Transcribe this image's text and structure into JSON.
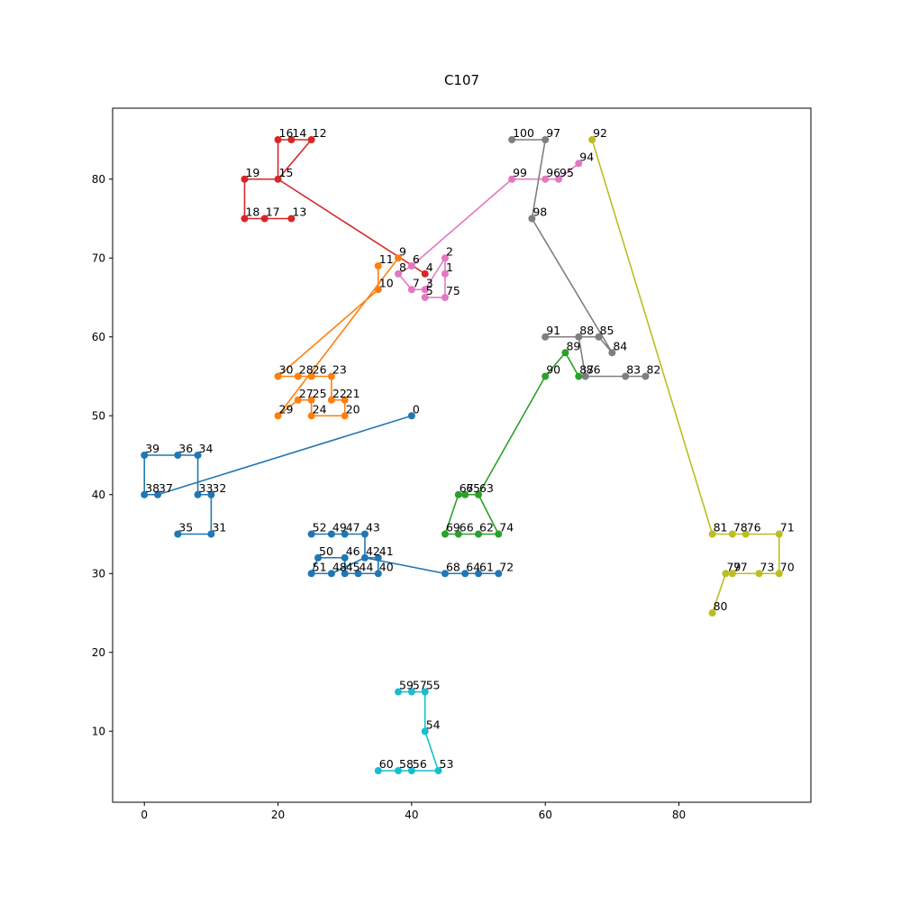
{
  "chart_data": {
    "type": "line",
    "title": "C107",
    "xlabel": "",
    "ylabel": "",
    "xlim": [
      -4.75,
      99.75
    ],
    "ylim": [
      1,
      89
    ],
    "xticks": [
      0,
      20,
      40,
      60,
      80
    ],
    "yticks": [
      10,
      20,
      30,
      40,
      50,
      60,
      70,
      80
    ],
    "grid": false,
    "points": {
      "0": [
        40,
        50
      ],
      "1": [
        45,
        68
      ],
      "2": [
        45,
        70
      ],
      "3": [
        42,
        66
      ],
      "4": [
        42,
        68
      ],
      "5": [
        42,
        65
      ],
      "6": [
        40,
        69
      ],
      "7": [
        40,
        66
      ],
      "8": [
        38,
        68
      ],
      "9": [
        38,
        70
      ],
      "10": [
        35,
        66
      ],
      "11": [
        35,
        69
      ],
      "12": [
        25,
        85
      ],
      "13": [
        22,
        75
      ],
      "14": [
        22,
        85
      ],
      "15": [
        20,
        80
      ],
      "16": [
        20,
        85
      ],
      "17": [
        18,
        75
      ],
      "18": [
        15,
        75
      ],
      "19": [
        15,
        80
      ],
      "20": [
        30,
        50
      ],
      "21": [
        30,
        52
      ],
      "22": [
        28,
        52
      ],
      "23": [
        28,
        55
      ],
      "24": [
        25,
        50
      ],
      "25": [
        25,
        52
      ],
      "26": [
        25,
        55
      ],
      "27": [
        23,
        52
      ],
      "28": [
        23,
        55
      ],
      "29": [
        20,
        50
      ],
      "30": [
        20,
        55
      ],
      "31": [
        10,
        35
      ],
      "32": [
        10,
        40
      ],
      "33": [
        8,
        40
      ],
      "34": [
        8,
        45
      ],
      "35": [
        5,
        35
      ],
      "36": [
        5,
        45
      ],
      "37": [
        2,
        40
      ],
      "38": [
        0,
        40
      ],
      "39": [
        0,
        45
      ],
      "40": [
        35,
        30
      ],
      "41": [
        35,
        32
      ],
      "42": [
        33,
        32
      ],
      "43": [
        33,
        35
      ],
      "44": [
        32,
        30
      ],
      "45": [
        30,
        30
      ],
      "46": [
        30,
        32
      ],
      "47": [
        30,
        35
      ],
      "48": [
        28,
        30
      ],
      "49": [
        28,
        35
      ],
      "50": [
        26,
        32
      ],
      "51": [
        25,
        30
      ],
      "52": [
        25,
        35
      ],
      "53": [
        44,
        5
      ],
      "54": [
        42,
        10
      ],
      "55": [
        42,
        15
      ],
      "56": [
        40,
        5
      ],
      "57": [
        40,
        15
      ],
      "58": [
        38,
        5
      ],
      "59": [
        38,
        15
      ],
      "60": [
        35,
        5
      ],
      "61": [
        50,
        30
      ],
      "62": [
        50,
        35
      ],
      "63": [
        50,
        40
      ],
      "64": [
        48,
        30
      ],
      "65": [
        48,
        40
      ],
      "66": [
        47,
        35
      ],
      "67": [
        47,
        40
      ],
      "68": [
        45,
        30
      ],
      "69": [
        45,
        35
      ],
      "70": [
        95,
        30
      ],
      "71": [
        95,
        35
      ],
      "72": [
        53,
        30
      ],
      "73": [
        92,
        30
      ],
      "74": [
        53,
        35
      ],
      "75": [
        45,
        65
      ],
      "76": [
        90,
        35
      ],
      "77": [
        88,
        30
      ],
      "78": [
        88,
        35
      ],
      "79": [
        87,
        30
      ],
      "80": [
        85,
        25
      ],
      "81": [
        85,
        35
      ],
      "82": [
        75,
        55
      ],
      "83": [
        72,
        55
      ],
      "84": [
        70,
        58
      ],
      "85": [
        68,
        60
      ],
      "86": [
        66,
        55
      ],
      "87": [
        65,
        55
      ],
      "88": [
        65,
        60
      ],
      "89": [
        63,
        58
      ],
      "90": [
        60,
        55
      ],
      "91": [
        60,
        60
      ],
      "92": [
        67,
        85
      ],
      "94": [
        65,
        82
      ],
      "95": [
        62,
        80
      ],
      "96": [
        60,
        80
      ],
      "97": [
        60,
        85
      ],
      "98": [
        58,
        75
      ],
      "99": [
        55,
        80
      ],
      "100": [
        55,
        85
      ]
    },
    "series": [
      {
        "color": "#1f77b4",
        "route": [
          0,
          37,
          38,
          39,
          36,
          34,
          33,
          32,
          31,
          35
        ]
      },
      {
        "color": "#1f77b4",
        "route": [
          52,
          49,
          47,
          43,
          42,
          41,
          40,
          44,
          45,
          46,
          50,
          51,
          48,
          42,
          68,
          64,
          61,
          72
        ]
      },
      {
        "color": "#ff7f0e",
        "route": [
          11,
          10,
          30,
          28,
          26,
          23,
          22,
          21,
          20,
          24,
          25,
          27,
          29,
          9
        ]
      },
      {
        "color": "#2ca02c",
        "route": [
          63,
          65,
          67,
          69,
          66,
          62,
          74,
          63,
          90,
          89,
          87,
          86
        ]
      },
      {
        "color": "#d62728",
        "route": [
          13,
          17,
          18,
          19,
          15,
          16,
          14,
          12,
          15,
          4
        ]
      },
      {
        "color": "#e377c2",
        "route": [
          5,
          75,
          1,
          2,
          3,
          7,
          8,
          6,
          99,
          96,
          95,
          94
        ]
      },
      {
        "color": "#7f7f7f",
        "route": [
          82,
          83,
          86,
          88,
          91,
          85,
          84,
          98,
          97,
          100
        ]
      },
      {
        "color": "#bcbd22",
        "route": [
          92,
          81,
          78,
          76,
          71,
          70,
          73,
          77,
          79,
          80
        ]
      },
      {
        "color": "#17becf",
        "route": [
          59,
          57,
          55,
          54,
          53,
          56,
          58,
          60
        ]
      }
    ],
    "pointColors": {
      "0": "#1f77b4",
      "31": "#1f77b4",
      "32": "#1f77b4",
      "33": "#1f77b4",
      "34": "#1f77b4",
      "35": "#1f77b4",
      "36": "#1f77b4",
      "37": "#1f77b4",
      "38": "#1f77b4",
      "39": "#1f77b4",
      "40": "#1f77b4",
      "41": "#1f77b4",
      "42": "#1f77b4",
      "43": "#1f77b4",
      "44": "#1f77b4",
      "45": "#1f77b4",
      "46": "#1f77b4",
      "47": "#1f77b4",
      "48": "#1f77b4",
      "49": "#1f77b4",
      "50": "#1f77b4",
      "51": "#1f77b4",
      "52": "#1f77b4",
      "61": "#1f77b4",
      "64": "#1f77b4",
      "68": "#1f77b4",
      "72": "#1f77b4",
      "9": "#ff7f0e",
      "10": "#ff7f0e",
      "11": "#ff7f0e",
      "20": "#ff7f0e",
      "21": "#ff7f0e",
      "22": "#ff7f0e",
      "23": "#ff7f0e",
      "24": "#ff7f0e",
      "25": "#ff7f0e",
      "26": "#ff7f0e",
      "27": "#ff7f0e",
      "28": "#ff7f0e",
      "29": "#ff7f0e",
      "30": "#ff7f0e",
      "62": "#2ca02c",
      "63": "#2ca02c",
      "65": "#2ca02c",
      "66": "#2ca02c",
      "67": "#2ca02c",
      "69": "#2ca02c",
      "74": "#2ca02c",
      "87": "#2ca02c",
      "89": "#2ca02c",
      "90": "#2ca02c",
      "4": "#d62728",
      "12": "#d62728",
      "13": "#d62728",
      "14": "#d62728",
      "15": "#d62728",
      "16": "#d62728",
      "17": "#d62728",
      "18": "#d62728",
      "19": "#d62728",
      "1": "#e377c2",
      "2": "#e377c2",
      "3": "#e377c2",
      "5": "#e377c2",
      "6": "#e377c2",
      "7": "#e377c2",
      "8": "#e377c2",
      "75": "#e377c2",
      "94": "#e377c2",
      "95": "#e377c2",
      "96": "#e377c2",
      "99": "#e377c2",
      "82": "#7f7f7f",
      "83": "#7f7f7f",
      "84": "#7f7f7f",
      "85": "#7f7f7f",
      "86": "#7f7f7f",
      "88": "#7f7f7f",
      "91": "#7f7f7f",
      "97": "#7f7f7f",
      "98": "#7f7f7f",
      "100": "#7f7f7f",
      "70": "#bcbd22",
      "71": "#bcbd22",
      "73": "#bcbd22",
      "76": "#bcbd22",
      "77": "#bcbd22",
      "78": "#bcbd22",
      "79": "#bcbd22",
      "80": "#bcbd22",
      "81": "#bcbd22",
      "92": "#bcbd22",
      "53": "#17becf",
      "54": "#17becf",
      "55": "#17becf",
      "56": "#17becf",
      "57": "#17becf",
      "58": "#17becf",
      "59": "#17becf",
      "60": "#17becf"
    }
  }
}
